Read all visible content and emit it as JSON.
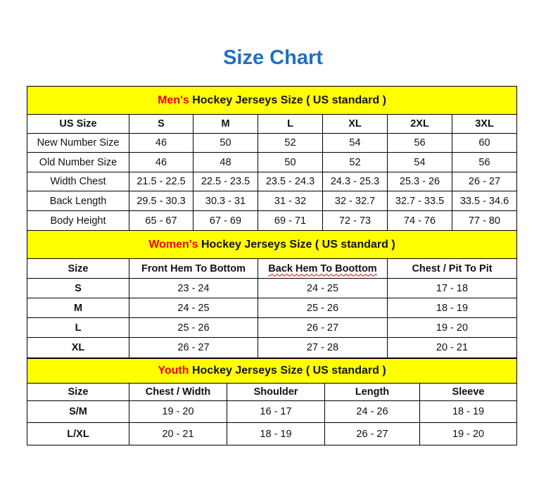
{
  "title": "Size Chart",
  "colors": {
    "title": "#1f70c1",
    "header_bg": "#ffff00",
    "accent_red": "#e8000b"
  },
  "mens": {
    "prefix": "Men's",
    "heading": " Hockey Jerseys Size ( US standard )",
    "columns": [
      "US Size",
      "S",
      "M",
      "L",
      "XL",
      "2XL",
      "3XL"
    ],
    "rows": [
      [
        "New Number Size",
        "46",
        "50",
        "52",
        "54",
        "56",
        "60"
      ],
      [
        "Old Number Size",
        "46",
        "48",
        "50",
        "52",
        "54",
        "56"
      ],
      [
        "Width Chest",
        "21.5 - 22.5",
        "22.5 - 23.5",
        "23.5 - 24.3",
        "24.3 - 25.3",
        "25.3 - 26",
        "26 - 27"
      ],
      [
        "Back Length",
        "29.5 - 30.3",
        "30.3 - 31",
        "31 - 32",
        "32 - 32.7",
        "32.7 - 33.5",
        "33.5 - 34.6"
      ],
      [
        "Body Height",
        "65 - 67",
        "67 - 69",
        "69 - 71",
        "72 - 73",
        "74 - 76",
        "77 - 80"
      ]
    ]
  },
  "womens": {
    "prefix": "Women's",
    "heading": " Hockey Jerseys Size ( US standard )",
    "columns": [
      "Size",
      "Front Hem To Bottom",
      "Back Hem To Boottom",
      "Chest / Pit To Pit"
    ],
    "rows": [
      [
        "S",
        "23 - 24",
        "24 - 25",
        "17 - 18"
      ],
      [
        "M",
        "24 - 25",
        "25 - 26",
        "18 - 19"
      ],
      [
        "L",
        "25 - 26",
        "26 - 27",
        "19 - 20"
      ],
      [
        "XL",
        "26 - 27",
        "27 - 28",
        "20 - 21"
      ]
    ]
  },
  "youth": {
    "prefix": "Youth",
    "heading": " Hockey Jerseys Size ( US standard )",
    "columns": [
      "Size",
      "Chest / Width",
      "Shoulder",
      "Length",
      "Sleeve"
    ],
    "rows": [
      [
        "S/M",
        "19 - 20",
        "16 - 17",
        "24 - 26",
        "18 - 19"
      ],
      [
        "L/XL",
        "20 - 21",
        "18 - 19",
        "26 - 27",
        "19 - 20"
      ]
    ]
  }
}
